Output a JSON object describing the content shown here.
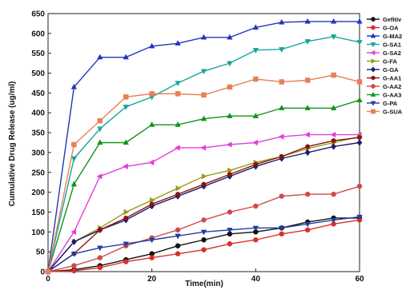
{
  "chart_data": {
    "type": "line",
    "title": "",
    "xlabel": "Time(min)",
    "ylabel": "Cumulative Drug Release (ug/ml)",
    "xlim": [
      0,
      60
    ],
    "ylim": [
      0,
      650
    ],
    "x": [
      0,
      5,
      10,
      15,
      20,
      25,
      30,
      35,
      40,
      45,
      50,
      55,
      60
    ],
    "x_ticks": [
      0,
      20,
      40,
      60
    ],
    "y_ticks": [
      0,
      50,
      100,
      150,
      200,
      250,
      300,
      350,
      400,
      450,
      500,
      550,
      600,
      650
    ],
    "grid": false,
    "legend_position": "right",
    "series": [
      {
        "name": "Gefitiv",
        "color": "#111111",
        "marker": "circle",
        "values": [
          0,
          5,
          15,
          30,
          45,
          65,
          80,
          95,
          100,
          110,
          125,
          135,
          135
        ]
      },
      {
        "name": "G-OA",
        "color": "#d9302a",
        "marker": "circle",
        "values": [
          0,
          2,
          10,
          25,
          35,
          45,
          55,
          70,
          80,
          95,
          105,
          120,
          130
        ]
      },
      {
        "name": "G-MA2",
        "color": "#2236b8",
        "marker": "triangle-up",
        "values": [
          0,
          465,
          540,
          540,
          568,
          575,
          590,
          590,
          615,
          628,
          630,
          630,
          630
        ]
      },
      {
        "name": "G-SA1",
        "color": "#18a69a",
        "marker": "triangle-down",
        "values": [
          0,
          285,
          360,
          415,
          440,
          475,
          505,
          525,
          558,
          560,
          580,
          592,
          578
        ]
      },
      {
        "name": "G-SA2",
        "color": "#e040d8",
        "marker": "triangle-left",
        "values": [
          0,
          100,
          240,
          265,
          275,
          312,
          312,
          320,
          325,
          340,
          345,
          345,
          345
        ]
      },
      {
        "name": "G-FA",
        "color": "#9a9a1a",
        "marker": "triangle-right",
        "values": [
          0,
          75,
          110,
          150,
          180,
          210,
          240,
          255,
          275,
          290,
          310,
          325,
          340
        ]
      },
      {
        "name": "G-GA",
        "color": "#1a1a70",
        "marker": "diamond",
        "values": [
          0,
          75,
          105,
          130,
          165,
          190,
          215,
          240,
          265,
          285,
          300,
          315,
          325
        ]
      },
      {
        "name": "G-AA1",
        "color": "#8a1212",
        "marker": "hexagon",
        "values": [
          0,
          45,
          105,
          135,
          170,
          195,
          220,
          245,
          270,
          290,
          315,
          330,
          338
        ]
      },
      {
        "name": "G-AA2",
        "color": "#d04a4a",
        "marker": "circle",
        "values": [
          0,
          15,
          35,
          65,
          85,
          105,
          130,
          150,
          165,
          190,
          195,
          195,
          215
        ]
      },
      {
        "name": "G-AA3",
        "color": "#13951a",
        "marker": "triangle-up",
        "values": [
          0,
          220,
          325,
          325,
          370,
          370,
          385,
          392,
          392,
          412,
          412,
          412,
          432
        ]
      },
      {
        "name": "G-PA",
        "color": "#1e3fa0",
        "marker": "triangle-down",
        "values": [
          0,
          45,
          60,
          70,
          80,
          90,
          100,
          105,
          110,
          110,
          120,
          130,
          138
        ]
      },
      {
        "name": "G-SUA",
        "color": "#e8805a",
        "marker": "square",
        "values": [
          0,
          320,
          380,
          440,
          448,
          448,
          445,
          465,
          485,
          478,
          482,
          495,
          478
        ]
      }
    ]
  }
}
